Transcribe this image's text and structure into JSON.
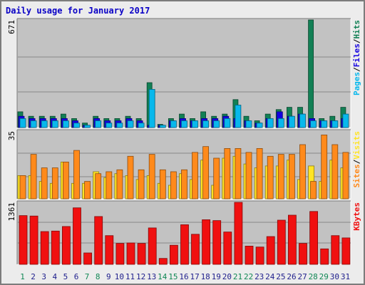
{
  "title": "Daily usage for January 2017",
  "colors": {
    "hits": "#128055",
    "files": "#1300e0",
    "pages": "#08b8ec",
    "visits": "#ff8a1b",
    "sites": "#ffe424",
    "kbytes": "#f01010",
    "panel_bg": "#c2c2c2",
    "grid": "#888888",
    "frame": "#ececec",
    "title": "#0a00c6",
    "day_weekend": "#118855",
    "day_weekday": "#1e1e8c"
  },
  "chart_data": [
    {
      "type": "bar",
      "y_max_label": "671",
      "ylim": [
        0,
        671
      ],
      "grid": true,
      "legend": "right",
      "legend_parts": [
        {
          "text": "Pages",
          "color_key": "pages"
        },
        {
          "text": "/",
          "color_key": "legend_sep"
        },
        {
          "text": "Files",
          "color_key": "files"
        },
        {
          "text": "/",
          "color_key": "legend_sep"
        },
        {
          "text": "Hits",
          "color_key": "hits"
        }
      ],
      "categories": [
        "1",
        "2",
        "3",
        "4",
        "5",
        "6",
        "7",
        "8",
        "9",
        "10",
        "11",
        "12",
        "13",
        "14",
        "15",
        "16",
        "17",
        "18",
        "19",
        "20",
        "21",
        "22",
        "23",
        "24",
        "25",
        "26",
        "27",
        "28",
        "29",
        "30",
        "31"
      ],
      "series": [
        {
          "name": "Hits",
          "color_key": "hits",
          "values": [
            98,
            70,
            70,
            70,
            84,
            56,
            28,
            70,
            56,
            56,
            70,
            56,
            280,
            20,
            56,
            84,
            56,
            98,
            70,
            84,
            174,
            70,
            42,
            84,
            112,
            126,
            126,
            671,
            56,
            70,
            126
          ]
        },
        {
          "name": "Files",
          "color_key": "files",
          "values": [
            70,
            56,
            56,
            56,
            56,
            42,
            14,
            56,
            42,
            42,
            56,
            42,
            14,
            14,
            42,
            56,
            42,
            56,
            56,
            70,
            56,
            42,
            28,
            56,
            98,
            70,
            84,
            56,
            42,
            42,
            56
          ]
        },
        {
          "name": "Pages",
          "color_key": "pages",
          "values": [
            56,
            42,
            42,
            42,
            42,
            28,
            14,
            42,
            28,
            28,
            42,
            28,
            238,
            14,
            42,
            42,
            42,
            42,
            42,
            56,
            140,
            42,
            28,
            56,
            56,
            70,
            84,
            42,
            42,
            42,
            84
          ]
        }
      ]
    },
    {
      "type": "bar",
      "y_max_label": "35",
      "ylim": [
        0,
        35
      ],
      "grid": true,
      "legend": "right",
      "legend_parts": [
        {
          "text": "Sites",
          "color_key": "visits"
        },
        {
          "text": "/",
          "color_key": "legend_sep"
        },
        {
          "text": "Visits",
          "color_key": "sites"
        }
      ],
      "categories": [
        "1",
        "2",
        "3",
        "4",
        "5",
        "6",
        "7",
        "8",
        "9",
        "10",
        "11",
        "12",
        "13",
        "14",
        "15",
        "16",
        "17",
        "18",
        "19",
        "20",
        "21",
        "22",
        "23",
        "24",
        "25",
        "26",
        "27",
        "28",
        "29",
        "30",
        "31"
      ],
      "series": [
        {
          "name": "Sites",
          "color_key": "sites",
          "values": [
            12,
            12,
            9,
            8,
            19,
            8,
            8,
            14,
            11,
            13,
            12,
            10,
            12,
            8,
            7,
            13,
            10,
            20,
            7,
            21,
            22,
            18,
            16,
            17,
            17,
            20,
            10,
            17,
            9,
            20,
            16
          ]
        },
        {
          "name": "Visits",
          "color_key": "visits",
          "values": [
            12,
            23,
            16,
            16,
            19,
            25,
            9,
            13,
            14,
            15,
            22,
            15,
            23,
            15,
            14,
            15,
            24,
            27,
            21,
            26,
            26,
            24,
            26,
            22,
            23,
            23,
            28,
            9,
            33,
            28,
            24
          ]
        }
      ]
    },
    {
      "type": "bar",
      "y_max_label": "1361",
      "ylim": [
        0,
        1361
      ],
      "grid": true,
      "legend": "right",
      "legend_parts": [
        {
          "text": "KBytes",
          "color_key": "kbytes"
        }
      ],
      "categories": [
        "1",
        "2",
        "3",
        "4",
        "5",
        "6",
        "7",
        "8",
        "9",
        "10",
        "11",
        "12",
        "13",
        "14",
        "15",
        "16",
        "17",
        "18",
        "19",
        "20",
        "21",
        "22",
        "23",
        "24",
        "25",
        "26",
        "27",
        "28",
        "29",
        "30",
        "31"
      ],
      "series": [
        {
          "name": "KBytes",
          "color_key": "kbytes",
          "values": [
            1070,
            1060,
            720,
            730,
            830,
            1240,
            250,
            1050,
            630,
            460,
            470,
            460,
            800,
            130,
            420,
            870,
            660,
            980,
            960,
            710,
            1361,
            400,
            380,
            610,
            970,
            1080,
            460,
            1160,
            340,
            630,
            580
          ]
        }
      ]
    }
  ]
}
